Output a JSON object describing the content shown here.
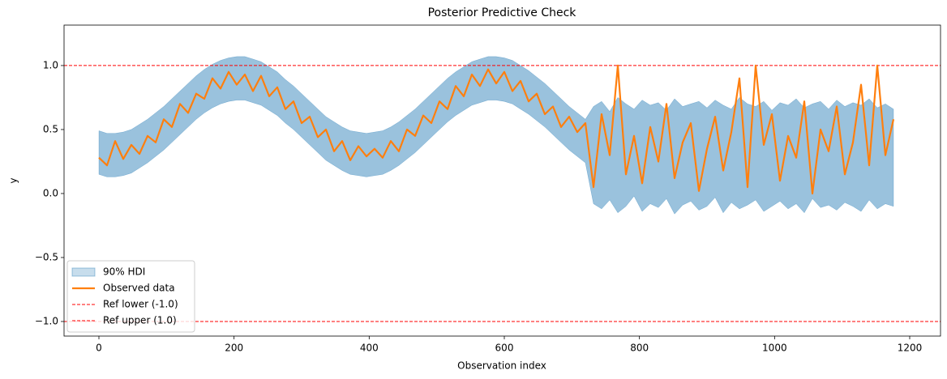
{
  "chart_data": {
    "type": "line",
    "title": "Posterior Predictive Check",
    "xlabel": "Observation index",
    "ylabel": "y",
    "x": [
      0,
      12,
      24,
      36,
      48,
      60,
      72,
      84,
      96,
      108,
      120,
      132,
      144,
      156,
      168,
      180,
      192,
      204,
      216,
      228,
      240,
      252,
      264,
      276,
      288,
      300,
      312,
      324,
      336,
      348,
      360,
      372,
      384,
      396,
      408,
      420,
      432,
      444,
      456,
      468,
      480,
      492,
      504,
      516,
      528,
      540,
      552,
      564,
      576,
      588,
      600,
      612,
      624,
      636,
      648,
      660,
      672,
      684,
      696,
      708,
      720,
      732,
      744,
      756,
      768,
      780,
      792,
      804,
      816,
      828,
      840,
      852,
      864,
      876,
      888,
      900,
      912,
      924,
      936,
      948,
      960,
      972,
      984,
      996,
      1008,
      1020,
      1032,
      1044,
      1056,
      1068,
      1080,
      1092,
      1104,
      1116,
      1128,
      1140,
      1152,
      1164,
      1176
    ],
    "series": [
      {
        "name": "Observed data",
        "color": "#ff7f0e",
        "values": [
          0.28,
          0.22,
          0.41,
          0.27,
          0.38,
          0.31,
          0.45,
          0.4,
          0.58,
          0.52,
          0.7,
          0.63,
          0.78,
          0.74,
          0.9,
          0.82,
          0.95,
          0.85,
          0.93,
          0.8,
          0.92,
          0.76,
          0.83,
          0.66,
          0.72,
          0.55,
          0.6,
          0.44,
          0.5,
          0.33,
          0.41,
          0.26,
          0.37,
          0.29,
          0.35,
          0.28,
          0.41,
          0.33,
          0.5,
          0.45,
          0.61,
          0.55,
          0.72,
          0.66,
          0.84,
          0.76,
          0.93,
          0.84,
          0.97,
          0.86,
          0.95,
          0.8,
          0.88,
          0.72,
          0.78,
          0.62,
          0.68,
          0.52,
          0.6,
          0.48,
          0.55,
          0.05,
          0.62,
          0.3,
          1.0,
          0.15,
          0.45,
          0.08,
          0.52,
          0.25,
          0.7,
          0.12,
          0.4,
          0.55,
          0.02,
          0.35,
          0.6,
          0.18,
          0.48,
          0.9,
          0.05,
          1.0,
          0.38,
          0.62,
          0.1,
          0.45,
          0.28,
          0.72,
          0.0,
          0.5,
          0.33,
          0.68,
          0.15,
          0.4,
          0.85,
          0.22,
          1.0,
          0.3,
          0.58
        ]
      }
    ],
    "band": {
      "name": "90% HDI",
      "color": "#1f77b4",
      "lower": [
        0.15,
        0.13,
        0.13,
        0.14,
        0.16,
        0.2,
        0.24,
        0.29,
        0.34,
        0.4,
        0.46,
        0.52,
        0.58,
        0.63,
        0.67,
        0.7,
        0.72,
        0.73,
        0.73,
        0.71,
        0.69,
        0.65,
        0.61,
        0.55,
        0.5,
        0.44,
        0.38,
        0.32,
        0.26,
        0.22,
        0.18,
        0.15,
        0.14,
        0.13,
        0.14,
        0.15,
        0.18,
        0.22,
        0.27,
        0.32,
        0.38,
        0.44,
        0.5,
        0.56,
        0.61,
        0.65,
        0.69,
        0.71,
        0.73,
        0.73,
        0.72,
        0.7,
        0.66,
        0.62,
        0.57,
        0.52,
        0.46,
        0.4,
        0.34,
        0.29,
        0.24,
        -0.08,
        -0.12,
        -0.05,
        -0.15,
        -0.1,
        -0.02,
        -0.14,
        -0.08,
        -0.11,
        -0.04,
        -0.16,
        -0.09,
        -0.06,
        -0.13,
        -0.1,
        -0.03,
        -0.15,
        -0.07,
        -0.12,
        -0.09,
        -0.05,
        -0.14,
        -0.1,
        -0.06,
        -0.12,
        -0.08,
        -0.15,
        -0.04,
        -0.11,
        -0.09,
        -0.13,
        -0.07,
        -0.1,
        -0.14,
        -0.05,
        -0.12,
        -0.08,
        -0.1
      ],
      "upper": [
        0.49,
        0.47,
        0.47,
        0.48,
        0.5,
        0.54,
        0.58,
        0.63,
        0.68,
        0.74,
        0.8,
        0.86,
        0.92,
        0.97,
        1.01,
        1.04,
        1.06,
        1.07,
        1.07,
        1.05,
        1.03,
        0.99,
        0.95,
        0.89,
        0.84,
        0.78,
        0.72,
        0.66,
        0.6,
        0.56,
        0.52,
        0.49,
        0.48,
        0.47,
        0.48,
        0.49,
        0.52,
        0.56,
        0.61,
        0.66,
        0.72,
        0.78,
        0.84,
        0.9,
        0.95,
        0.99,
        1.03,
        1.05,
        1.07,
        1.07,
        1.06,
        1.04,
        1.0,
        0.96,
        0.91,
        0.86,
        0.8,
        0.74,
        0.68,
        0.63,
        0.58,
        0.68,
        0.72,
        0.64,
        0.75,
        0.7,
        0.66,
        0.73,
        0.69,
        0.71,
        0.65,
        0.74,
        0.68,
        0.7,
        0.72,
        0.67,
        0.73,
        0.69,
        0.66,
        0.75,
        0.7,
        0.68,
        0.72,
        0.65,
        0.71,
        0.69,
        0.74,
        0.67,
        0.7,
        0.72,
        0.66,
        0.73,
        0.68,
        0.71,
        0.69,
        0.74,
        0.67,
        0.7,
        0.66
      ]
    },
    "hlines": [
      {
        "name": "Ref lower (-1.0)",
        "value": -1,
        "color": "#ff0000"
      },
      {
        "name": "Ref upper (1.0)",
        "value": 1,
        "color": "#ff0000"
      }
    ],
    "xlim": [
      -51.6,
      1245.6
    ],
    "ylim": [
      -1.114,
      1.316
    ],
    "xticks": [
      0,
      200,
      400,
      600,
      800,
      1000,
      1200
    ],
    "yticks": [
      {
        "value": -1,
        "label": "−1.0"
      },
      {
        "value": -0.5,
        "label": "−0.5"
      },
      {
        "value": 0,
        "label": "0.0"
      },
      0.5,
      {
        "value": 1,
        "label": "1.0"
      }
    ],
    "legend": "lower left"
  }
}
